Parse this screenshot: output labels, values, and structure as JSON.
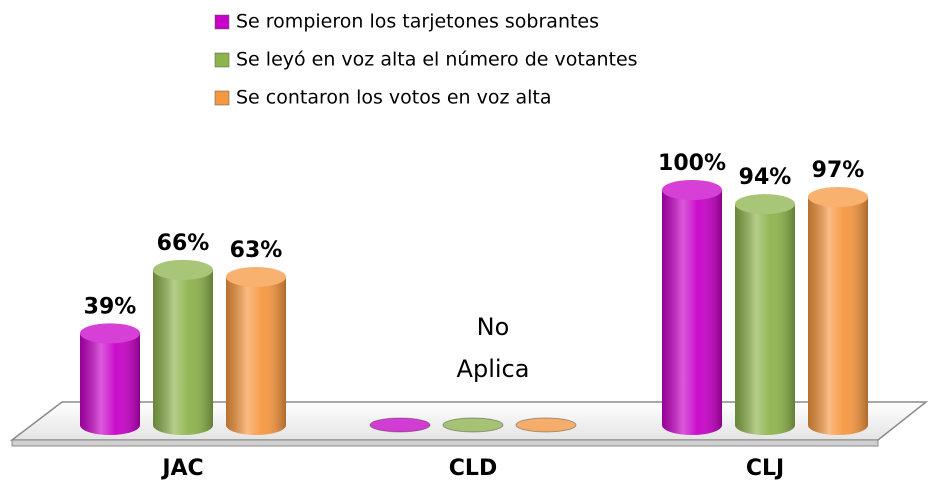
{
  "chart_data": {
    "type": "bar3d",
    "categories": [
      "JAC",
      "CLD",
      "CLJ"
    ],
    "series": [
      {
        "name": "Se rompieron los tarjetones sobrantes",
        "color": "#c800c8",
        "values": [
          39,
          null,
          100
        ],
        "value_labels": [
          "39%",
          null,
          "100%"
        ]
      },
      {
        "name": "Se leyó en voz alta el número de votantes",
        "color": "#8db34b",
        "values": [
          66,
          null,
          94
        ],
        "value_labels": [
          "66%",
          null,
          "94%"
        ]
      },
      {
        "name": "Se contaron los votos en voz alta",
        "color": "#f7973f",
        "values": [
          63,
          null,
          97
        ],
        "value_labels": [
          "63%",
          null,
          "97%"
        ]
      }
    ],
    "annotation": [
      "No",
      "Aplica"
    ],
    "ylim": [
      0,
      100
    ],
    "legend": "top"
  }
}
